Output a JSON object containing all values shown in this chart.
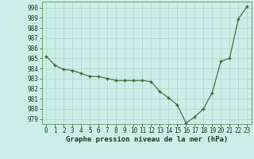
{
  "x": [
    0,
    1,
    2,
    3,
    4,
    5,
    6,
    7,
    8,
    9,
    10,
    11,
    12,
    13,
    14,
    15,
    16,
    17,
    18,
    19,
    20,
    21,
    22,
    23
  ],
  "y": [
    985.2,
    984.3,
    983.9,
    983.8,
    983.5,
    983.2,
    983.2,
    983.0,
    982.8,
    982.8,
    982.8,
    982.8,
    982.7,
    981.7,
    981.1,
    980.4,
    978.6,
    979.2,
    980.0,
    981.6,
    984.7,
    985.0,
    988.9,
    990.1
  ],
  "line_color": "#2d6a2d",
  "marker_color": "#2d6a2d",
  "bg_color": "#cceee8",
  "grid_color": "#aad4cc",
  "xlabel": "Graphe pression niveau de la mer (hPa)",
  "ylim": [
    978.5,
    990.6
  ],
  "xlim": [
    -0.5,
    23.5
  ],
  "yticks": [
    979,
    980,
    981,
    982,
    983,
    984,
    985,
    986,
    987,
    988,
    989,
    990
  ],
  "xticks": [
    0,
    1,
    2,
    3,
    4,
    5,
    6,
    7,
    8,
    9,
    10,
    11,
    12,
    13,
    14,
    15,
    16,
    17,
    18,
    19,
    20,
    21,
    22,
    23
  ],
  "tick_fontsize": 5.5,
  "xlabel_fontsize": 6.5
}
